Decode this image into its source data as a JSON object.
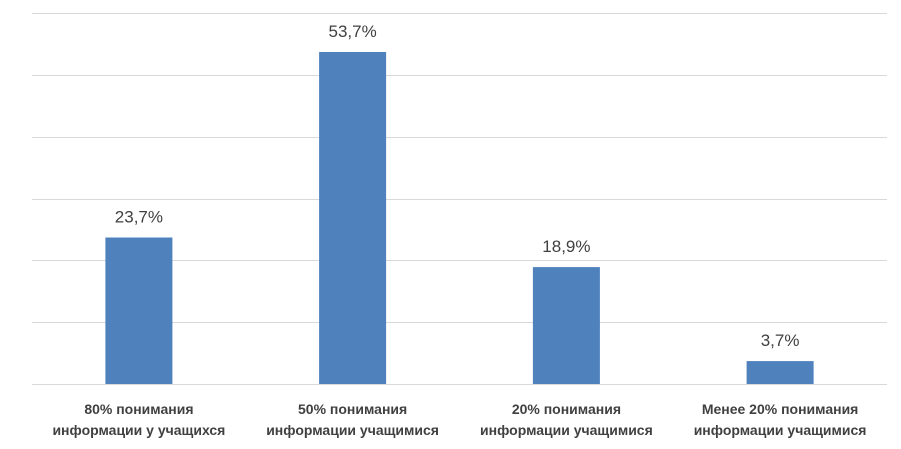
{
  "chart_data": {
    "type": "bar",
    "categories": [
      [
        "80% понимания",
        "информации у учащихся"
      ],
      [
        "50% понимания",
        "информации учащимися"
      ],
      [
        "20% понимания",
        "информации учащимися"
      ],
      [
        "Менее 20% понимания",
        "информации учащимися"
      ]
    ],
    "values": [
      23.7,
      53.7,
      18.9,
      3.7
    ],
    "data_labels": [
      "23,7%",
      "53,7%",
      "18,9%",
      "3,7%"
    ],
    "ylim": [
      0,
      60
    ],
    "grid_step": 10,
    "grid": true,
    "bar_color": "#4f81bd"
  }
}
